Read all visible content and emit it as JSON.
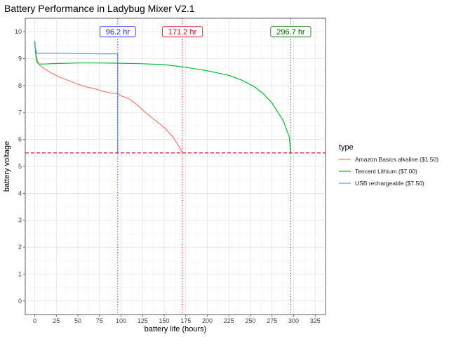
{
  "chart_data": {
    "type": "line",
    "title": "Battery Performance in Ladybug Mixer V2.1",
    "xlabel": "battery life (hours)",
    "ylabel": "battery voltage",
    "xlim": [
      -11,
      337
    ],
    "ylim": [
      -0.5,
      10.5
    ],
    "xticks": [
      0,
      25,
      50,
      75,
      100,
      125,
      150,
      175,
      200,
      225,
      250,
      275,
      300,
      325
    ],
    "yticks": [
      0,
      1,
      2,
      3,
      4,
      5,
      6,
      7,
      8,
      9,
      10
    ],
    "grid": true,
    "legend_title": "type",
    "legend_position": "right",
    "threshold": {
      "y": 5.5,
      "color": "#e3001b",
      "style": "dashed"
    },
    "series": [
      {
        "name": "Amazon Basics alkaline ($1.50)",
        "color": "#f8766d",
        "x": [
          0,
          1,
          2,
          4,
          6,
          10,
          20,
          30,
          40,
          50,
          60,
          70,
          80,
          90,
          96.2,
          100,
          110,
          120,
          130,
          140,
          150,
          160,
          165,
          170,
          171.2
        ],
        "y": [
          9.65,
          9.3,
          9.05,
          8.85,
          8.75,
          8.65,
          8.45,
          8.3,
          8.18,
          8.05,
          7.95,
          7.88,
          7.78,
          7.72,
          7.7,
          7.62,
          7.5,
          7.25,
          6.95,
          6.7,
          6.45,
          6.1,
          5.85,
          5.58,
          5.5
        ]
      },
      {
        "name": "Tencent Lithium ($7.00)",
        "color": "#00ba38",
        "x": [
          0,
          1,
          2,
          3,
          5,
          10,
          25,
          50,
          75,
          100,
          125,
          150,
          175,
          200,
          225,
          240,
          255,
          265,
          275,
          282,
          288,
          292,
          295,
          296.7
        ],
        "y": [
          9.65,
          9.2,
          8.95,
          8.85,
          8.8,
          8.8,
          8.82,
          8.84,
          8.84,
          8.83,
          8.81,
          8.78,
          8.68,
          8.55,
          8.38,
          8.2,
          7.95,
          7.7,
          7.35,
          7.0,
          6.7,
          6.35,
          6.1,
          5.5
        ]
      },
      {
        "name": "USB rechargeable ($7.50)",
        "color": "#619cff",
        "x": [
          0,
          1,
          2,
          3,
          5,
          25,
          50,
          75,
          96.2,
          96.2
        ],
        "y": [
          9.5,
          9.35,
          9.25,
          9.2,
          9.2,
          9.2,
          9.19,
          9.18,
          9.18,
          5.5
        ]
      }
    ],
    "annotations": [
      {
        "label": "96.2 hr",
        "x": 96.2,
        "y": 10,
        "color": "#1a1aff",
        "vline": "dotted"
      },
      {
        "label": "171.2 hr",
        "x": 171.2,
        "y": 10,
        "color": "#e3001b",
        "vline": "dotted"
      },
      {
        "label": "296.7 hr",
        "x": 296.7,
        "y": 10,
        "color": "#006400",
        "vline": "dotted"
      }
    ]
  }
}
